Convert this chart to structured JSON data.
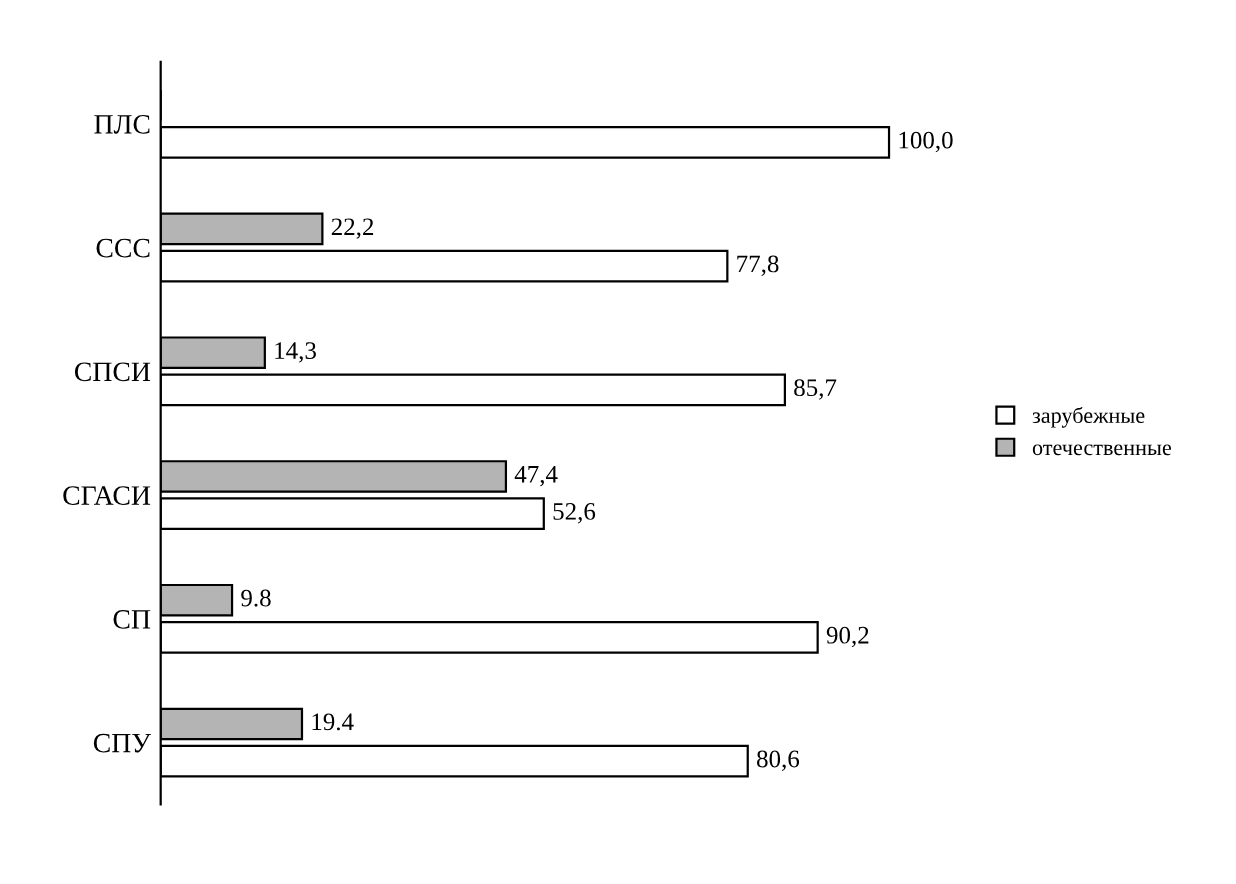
{
  "chart_data": {
    "type": "bar",
    "orientation": "horizontal",
    "categories": [
      "ПЛС",
      "ССС",
      "СПСИ",
      "СГАСИ",
      "СП",
      "СПУ"
    ],
    "series": [
      {
        "name": "отечественные",
        "color": "#b4b4b4",
        "values": [
          0,
          22.2,
          14.3,
          47.4,
          9.8,
          19.4
        ],
        "value_labels": [
          null,
          "22,2",
          "14,3",
          "47,4",
          "9.8",
          "19.4"
        ]
      },
      {
        "name": "зарубежные",
        "color": "#ffffff",
        "values": [
          100.0,
          77.8,
          85.7,
          52.6,
          90.2,
          80.6
        ],
        "value_labels": [
          "100,0",
          "77,8",
          "85,7",
          "52,6",
          "90,2",
          "80,6"
        ]
      }
    ],
    "legend": "right",
    "grid": false,
    "tick_labels": "y"
  }
}
